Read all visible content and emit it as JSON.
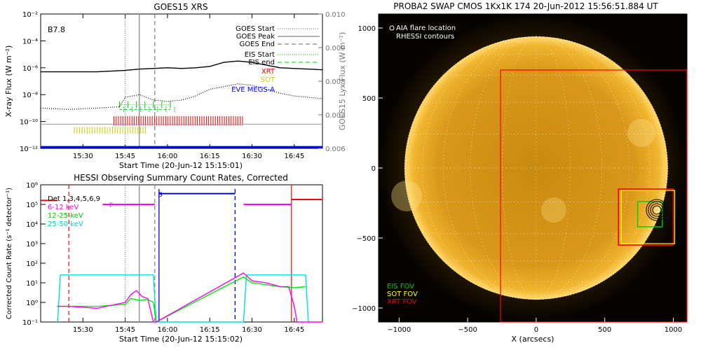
{
  "chart_data": [
    {
      "id": "goes",
      "type": "line",
      "title": "GOES15 XRS",
      "xlabel": "Start Time (20-Jun-12 15:15:01)",
      "ylabel": "X-ray Flux (W m⁻²)",
      "ylabel_right": "GOES15 Lyx Flux (W m⁻²)",
      "flare_class": "B7.8",
      "xlim": [
        0,
        100
      ],
      "x_ticks": [
        "15:30",
        "15:45",
        "16:00",
        "16:15",
        "16:30",
        "16:45"
      ],
      "x_tick_values": [
        15,
        30,
        45,
        60,
        75,
        90
      ],
      "y_scale": "log",
      "ylim": [
        -12,
        -2
      ],
      "y_ticks": [
        "10⁻²",
        "10⁻⁴",
        "10⁻⁶",
        "10⁻⁸",
        "10⁻¹⁰",
        "10⁻¹²"
      ],
      "y_tick_values": [
        -2,
        -4,
        -6,
        -8,
        -10,
        -12
      ],
      "y2lim": [
        0.006,
        0.01
      ],
      "y2_ticks": [
        "0.010",
        "0.009",
        "0.008",
        "0.007",
        "0.006"
      ],
      "y2_tick_values": [
        0.01,
        0.009,
        0.008,
        0.007,
        0.006
      ],
      "event_lines": {
        "goes_start": 30,
        "goes_peak": 35,
        "goes_end": 40.5
      },
      "legend": {
        "goes_start": "GOES Start",
        "goes_peak": "GOES Peak",
        "goes_end": "GOES End",
        "eis_start": "EIS Start",
        "eis_end": "EIS end",
        "xrt": "XRT",
        "sot": "SOT",
        "eve": "EVE MEGS-A"
      },
      "series": [
        {
          "key": "long",
          "color": "#000000",
          "x": [
            0,
            10,
            20,
            30,
            35,
            40,
            45,
            50,
            55,
            60,
            65,
            70,
            75,
            80,
            85,
            90,
            95,
            100
          ],
          "y": [
            -6.3,
            -6.3,
            -6.3,
            -6.2,
            -6.1,
            -6.05,
            -6.0,
            -6.05,
            -6.0,
            -5.9,
            -5.6,
            -5.5,
            -5.6,
            -5.8,
            -6.0,
            -6.05,
            -6.1,
            -6.15
          ]
        },
        {
          "key": "short",
          "color": "#000000",
          "x": [
            0,
            10,
            20,
            28,
            30,
            35,
            40,
            45,
            50,
            55,
            60,
            65,
            70,
            75,
            80,
            85,
            90,
            95,
            100
          ],
          "y": [
            -9.0,
            -9.1,
            -9.0,
            -8.9,
            -8.2,
            -8.0,
            -8.4,
            -8.5,
            -8.4,
            -8.1,
            -7.6,
            -7.4,
            -7.2,
            -7.3,
            -7.6,
            -7.9,
            -8.1,
            -8.2,
            -8.3
          ]
        },
        {
          "key": "lyx",
          "color": "#999999",
          "x": [
            0,
            20,
            40,
            60,
            80,
            100
          ],
          "y": [
            -10.2,
            -10.2,
            -10.2,
            -10.2,
            -10.2,
            -10.2
          ]
        },
        {
          "key": "eve",
          "color": "#0000ff",
          "x": [
            0,
            100
          ],
          "y": [
            -11.9,
            -11.9
          ]
        }
      ]
    },
    {
      "id": "rhessi",
      "type": "line",
      "title": "HESSI Observing Summary Count Rates, Corrected",
      "xlabel": "Start Time (20-Jun-12 15:15:02)",
      "ylabel": "Corrected Count Rate (s⁻¹ detector⁻¹)",
      "xlim": [
        0,
        100
      ],
      "x_ticks": [
        "15:30",
        "15:45",
        "16:00",
        "16:15",
        "16:30",
        "16:45"
      ],
      "x_tick_values": [
        15,
        30,
        45,
        60,
        75,
        90
      ],
      "y_scale": "log",
      "ylim": [
        -1,
        6
      ],
      "y_ticks": [
        "10⁶",
        "10⁵",
        "10⁴",
        "10³",
        "10²",
        "10¹",
        "10⁰",
        "10⁻¹"
      ],
      "y_tick_values": [
        6,
        5,
        4,
        3,
        2,
        1,
        0,
        -1
      ],
      "detectors_label": "Det 1,3,4,5,6,9",
      "flag_f": "F",
      "flag_s": "S",
      "series": [
        {
          "name": "6-12 keV",
          "color": "#ff00ff",
          "x": [
            6,
            10,
            20,
            30,
            32,
            34,
            36,
            38,
            40,
            41,
            72,
            75,
            80,
            85,
            88,
            90,
            91,
            100
          ],
          "y": [
            -0.2,
            -0.2,
            -0.3,
            0.0,
            0.4,
            0.6,
            0.3,
            0.2,
            -1.0,
            -1.0,
            1.5,
            1.1,
            1.0,
            0.8,
            0.8,
            -0.2,
            -1.0,
            -1.0
          ]
        },
        {
          "name": "12-25 keV",
          "color": "#00ee00",
          "x": [
            6,
            10,
            20,
            30,
            32,
            35,
            38,
            40,
            41,
            72,
            75,
            80,
            85,
            90,
            94
          ],
          "y": [
            -0.2,
            -0.2,
            -0.2,
            -0.1,
            0.2,
            0.1,
            0.15,
            0.0,
            -1.0,
            1.3,
            1.0,
            0.9,
            0.8,
            0.75,
            0.8
          ]
        },
        {
          "name": "25-50 keV",
          "color": "#00dddd",
          "x": [
            6,
            7,
            40,
            41,
            72,
            73,
            94,
            95
          ],
          "y": [
            -1.0,
            1.4,
            1.4,
            -1.0,
            -1.0,
            1.4,
            1.4,
            -1.0
          ]
        }
      ]
    },
    {
      "id": "swap",
      "type": "heatmap",
      "title": "PROBA2 SWAP CMOS 1Kx1K 174 20-Jun-2012 15:56:51.884 UT",
      "xlabel": "X (arcsecs)",
      "ylabel": "",
      "xlim": [
        -1150,
        1100
      ],
      "ylim": [
        -1100,
        1100
      ],
      "x_ticks": [
        "−1000",
        "−500",
        "0",
        "500",
        "1000"
      ],
      "x_tick_values": [
        -1000,
        -500,
        0,
        500,
        1000
      ],
      "y_ticks": [
        "1000",
        "500",
        "0",
        "−500",
        "−1000"
      ],
      "y_tick_values": [
        1000,
        500,
        0,
        -500,
        -1000
      ],
      "legend_top": [
        "AIA flare location",
        "RHESSI contours"
      ],
      "fov_labels": [
        {
          "text": "EIS FOV",
          "color": "#00cc00"
        },
        {
          "text": "SOT FOV",
          "color": "#ffff00"
        },
        {
          "text": "XRT FOV",
          "color": "#ff0000"
        }
      ],
      "flare_location": [
        880,
        -300
      ]
    }
  ]
}
